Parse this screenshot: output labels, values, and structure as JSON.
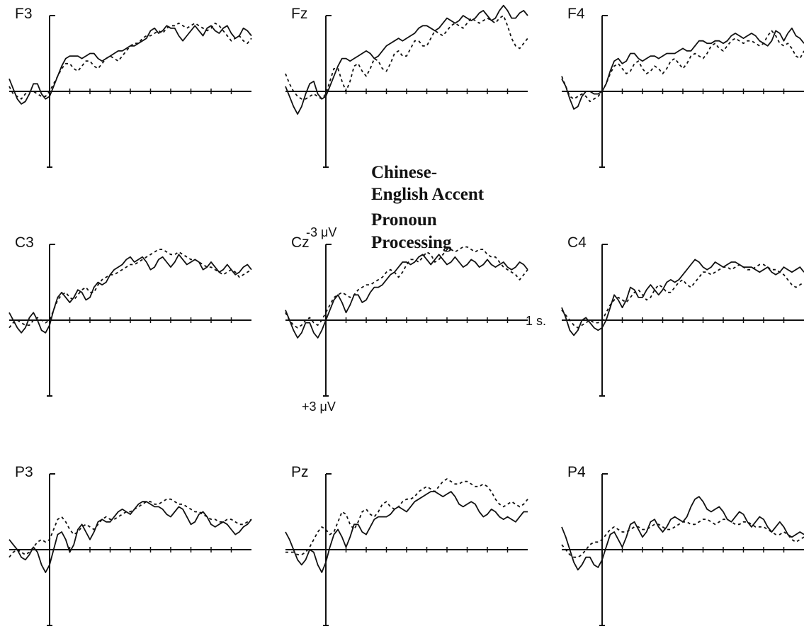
{
  "chart_data": {
    "type": "line",
    "title_lines": [
      "Chinese-",
      "English Accent",
      "Pronoun",
      "Processing"
    ],
    "scale": {
      "negative_label": "-3 μV",
      "positive_label": "+3 μV",
      "time_label": "1 s."
    },
    "style": {
      "line_color": "#111111",
      "background": "#ffffff"
    },
    "units": {
      "x": "s",
      "y": "μV"
    },
    "xlim": [
      -0.2,
      1.0
    ],
    "ylim": [
      -3,
      3
    ],
    "x_step": 0.02,
    "x_start": -0.2,
    "series_styles": [
      {
        "id": "solid",
        "dash": ""
      },
      {
        "id": "dashed",
        "dash": "4,4"
      }
    ],
    "panels": [
      {
        "label": "F3",
        "solid": [
          -0.5,
          -0.1,
          0.3,
          0.5,
          0.4,
          0.1,
          -0.3,
          -0.3,
          0.1,
          0.3,
          0.2,
          -0.2,
          -0.6,
          -1.0,
          -1.3,
          -1.4,
          -1.4,
          -1.4,
          -1.3,
          -1.4,
          -1.5,
          -1.5,
          -1.3,
          -1.2,
          -1.3,
          -1.4,
          -1.5,
          -1.6,
          -1.6,
          -1.7,
          -1.8,
          -1.8,
          -1.9,
          -2.0,
          -2.1,
          -2.4,
          -2.5,
          -2.3,
          -2.4,
          -2.6,
          -2.5,
          -2.5,
          -2.2,
          -2.0,
          -2.2,
          -2.4,
          -2.6,
          -2.4,
          -2.2,
          -2.5,
          -2.6,
          -2.4,
          -2.3,
          -2.5,
          -2.6,
          -2.3,
          -2.1,
          -2.2,
          -2.5,
          -2.4,
          -2.2
        ],
        "dashed": [
          -0.2,
          0.1,
          0.2,
          0.3,
          0.1,
          0.0,
          0.0,
          0.1,
          0.2,
          0.2,
          0.0,
          -0.3,
          -0.6,
          -0.9,
          -1.1,
          -1.1,
          -0.9,
          -0.8,
          -1.0,
          -1.2,
          -1.2,
          -1.0,
          -0.9,
          -1.1,
          -1.3,
          -1.4,
          -1.3,
          -1.2,
          -1.4,
          -1.6,
          -1.8,
          -1.9,
          -1.9,
          -2.1,
          -2.2,
          -2.2,
          -2.3,
          -2.4,
          -2.3,
          -2.5,
          -2.6,
          -2.6,
          -2.7,
          -2.6,
          -2.5,
          -2.6,
          -2.7,
          -2.6,
          -2.5,
          -2.4,
          -2.5,
          -2.7,
          -2.6,
          -2.4,
          -2.2,
          -2.0,
          -2.1,
          -2.2,
          -2.0,
          -1.9,
          -2.1
        ]
      },
      {
        "label": "Fz",
        "solid": [
          -0.2,
          0.2,
          0.6,
          0.9,
          0.6,
          0.1,
          -0.3,
          -0.4,
          0.1,
          0.3,
          0.2,
          -0.2,
          -0.6,
          -1.0,
          -1.3,
          -1.3,
          -1.2,
          -1.3,
          -1.4,
          -1.5,
          -1.6,
          -1.5,
          -1.3,
          -1.4,
          -1.6,
          -1.8,
          -1.9,
          -2.0,
          -2.1,
          -2.0,
          -2.1,
          -2.2,
          -2.3,
          -2.5,
          -2.6,
          -2.6,
          -2.5,
          -2.4,
          -2.5,
          -2.7,
          -2.9,
          -2.8,
          -2.7,
          -2.8,
          -3.0,
          -2.9,
          -2.8,
          -2.9,
          -3.1,
          -3.2,
          -3.0,
          -2.8,
          -2.9,
          -3.2,
          -3.4,
          -3.2,
          -2.9,
          -2.9,
          -3.1,
          -3.2,
          -3.0
        ],
        "dashed": [
          -0.7,
          -0.3,
          0.0,
          0.2,
          0.3,
          0.3,
          0.2,
          0.1,
          0.2,
          0.3,
          0.1,
          -0.4,
          -0.9,
          -0.9,
          -0.4,
          0.0,
          -0.4,
          -1.0,
          -1.1,
          -0.8,
          -0.6,
          -0.9,
          -1.3,
          -1.2,
          -0.9,
          -0.8,
          -1.1,
          -1.5,
          -1.6,
          -1.4,
          -1.4,
          -1.7,
          -2.0,
          -2.0,
          -1.8,
          -1.8,
          -2.1,
          -2.4,
          -2.3,
          -2.2,
          -2.4,
          -2.6,
          -2.7,
          -2.6,
          -2.5,
          -2.7,
          -2.9,
          -2.8,
          -2.7,
          -2.8,
          -2.9,
          -2.8,
          -2.7,
          -2.9,
          -3.0,
          -2.6,
          -2.1,
          -1.8,
          -1.7,
          -1.9,
          -2.1
        ]
      },
      {
        "label": "F4",
        "solid": [
          -0.5,
          -0.2,
          0.3,
          0.7,
          0.6,
          0.2,
          0.0,
          0.0,
          0.1,
          0.1,
          0.0,
          -0.3,
          -0.8,
          -1.2,
          -1.3,
          -1.1,
          -1.2,
          -1.5,
          -1.5,
          -1.3,
          -1.2,
          -1.3,
          -1.4,
          -1.4,
          -1.3,
          -1.4,
          -1.5,
          -1.5,
          -1.5,
          -1.6,
          -1.7,
          -1.6,
          -1.6,
          -1.8,
          -2.0,
          -2.0,
          -1.9,
          -1.9,
          -2.0,
          -2.0,
          -1.9,
          -2.0,
          -2.2,
          -2.3,
          -2.2,
          -2.1,
          -2.2,
          -2.3,
          -2.2,
          -2.0,
          -1.9,
          -1.8,
          -2.0,
          -2.4,
          -2.3,
          -2.0,
          -2.3,
          -2.5,
          -2.2,
          -2.1,
          -1.9
        ],
        "dashed": [
          -0.6,
          -0.2,
          0.2,
          0.3,
          0.2,
          0.1,
          0.2,
          0.4,
          0.3,
          0.2,
          0.0,
          -0.3,
          -0.7,
          -1.0,
          -1.1,
          -0.9,
          -0.7,
          -0.8,
          -1.1,
          -1.2,
          -0.9,
          -0.7,
          -0.8,
          -1.0,
          -0.9,
          -0.7,
          -0.9,
          -1.2,
          -1.3,
          -1.1,
          -0.9,
          -1.1,
          -1.4,
          -1.5,
          -1.4,
          -1.3,
          -1.5,
          -1.8,
          -1.9,
          -1.7,
          -1.6,
          -1.8,
          -2.0,
          -2.1,
          -2.0,
          -1.9,
          -2.0,
          -2.0,
          -1.9,
          -1.8,
          -1.9,
          -2.2,
          -2.4,
          -2.2,
          -1.9,
          -1.8,
          -1.9,
          -1.7,
          -1.4,
          -1.3,
          -1.6
        ]
      },
      {
        "label": "C3",
        "solid": [
          -0.3,
          0.0,
          0.3,
          0.5,
          0.3,
          -0.1,
          -0.3,
          0.0,
          0.4,
          0.5,
          0.2,
          -0.4,
          -0.9,
          -1.1,
          -0.9,
          -0.7,
          -0.9,
          -1.2,
          -1.1,
          -0.8,
          -0.9,
          -1.3,
          -1.5,
          -1.4,
          -1.5,
          -1.8,
          -2.0,
          -2.1,
          -2.2,
          -2.4,
          -2.5,
          -2.3,
          -2.4,
          -2.5,
          -2.3,
          -2.0,
          -2.1,
          -2.4,
          -2.5,
          -2.3,
          -2.1,
          -2.3,
          -2.6,
          -2.4,
          -2.2,
          -2.3,
          -2.4,
          -2.3,
          -2.0,
          -2.1,
          -2.3,
          -2.1,
          -1.9,
          -2.0,
          -2.2,
          -2.0,
          -1.8,
          -1.9,
          -2.1,
          -2.2,
          -2.0
        ],
        "dashed": [
          0.3,
          0.1,
          0.0,
          0.1,
          0.2,
          0.2,
          0.0,
          -0.1,
          0.0,
          0.1,
          0.0,
          -0.4,
          -0.8,
          -1.0,
          -1.1,
          -0.9,
          -0.8,
          -1.0,
          -1.2,
          -1.3,
          -1.1,
          -1.1,
          -1.4,
          -1.6,
          -1.7,
          -1.8,
          -1.8,
          -1.9,
          -2.0,
          -2.1,
          -2.2,
          -2.2,
          -2.3,
          -2.4,
          -2.5,
          -2.6,
          -2.7,
          -2.8,
          -2.8,
          -2.7,
          -2.6,
          -2.6,
          -2.7,
          -2.6,
          -2.5,
          -2.4,
          -2.4,
          -2.3,
          -2.2,
          -2.1,
          -2.1,
          -2.0,
          -1.9,
          -1.8,
          -1.9,
          -2.0,
          -1.9,
          -1.7,
          -1.8,
          -1.9,
          -2.0
        ]
      },
      {
        "label": "Cz",
        "solid": [
          -0.4,
          0.0,
          0.4,
          0.7,
          0.5,
          0.1,
          0.1,
          0.5,
          0.7,
          0.4,
          0.0,
          -0.4,
          -0.8,
          -1.0,
          -0.7,
          -0.3,
          -0.6,
          -1.0,
          -1.0,
          -0.7,
          -0.8,
          -1.1,
          -1.3,
          -1.3,
          -1.4,
          -1.6,
          -1.8,
          -1.9,
          -2.1,
          -2.3,
          -2.3,
          -2.2,
          -2.3,
          -2.5,
          -2.6,
          -2.4,
          -2.2,
          -2.4,
          -2.6,
          -2.4,
          -2.2,
          -2.3,
          -2.5,
          -2.3,
          -2.1,
          -2.2,
          -2.4,
          -2.3,
          -2.1,
          -2.2,
          -2.4,
          -2.2,
          -2.1,
          -2.2,
          -2.3,
          -2.1,
          -2.0,
          -2.1,
          -2.3,
          -2.2,
          -2.0
        ],
        "dashed": [
          -0.3,
          0.0,
          0.2,
          0.3,
          0.2,
          0.0,
          -0.1,
          0.1,
          0.2,
          0.0,
          -0.3,
          -0.6,
          -0.9,
          -1.0,
          -1.1,
          -1.0,
          -0.9,
          -1.0,
          -1.2,
          -1.3,
          -1.4,
          -1.4,
          -1.5,
          -1.6,
          -1.7,
          -1.9,
          -2.0,
          -1.9,
          -1.7,
          -1.9,
          -2.2,
          -2.4,
          -2.4,
          -2.3,
          -2.5,
          -2.7,
          -2.6,
          -2.3,
          -2.4,
          -2.6,
          -2.8,
          -2.8,
          -2.7,
          -2.8,
          -2.9,
          -2.9,
          -2.8,
          -2.7,
          -2.8,
          -2.8,
          -2.6,
          -2.5,
          -2.5,
          -2.3,
          -2.1,
          -2.0,
          -1.9,
          -1.8,
          -1.6,
          -1.8,
          -2.0
        ]
      },
      {
        "label": "C4",
        "solid": [
          -0.5,
          -0.1,
          0.4,
          0.6,
          0.4,
          0.0,
          -0.1,
          0.1,
          0.3,
          0.4,
          0.3,
          0.0,
          -0.5,
          -1.0,
          -0.8,
          -0.5,
          -0.8,
          -1.3,
          -1.2,
          -0.9,
          -0.9,
          -1.2,
          -1.4,
          -1.2,
          -1.0,
          -1.2,
          -1.5,
          -1.6,
          -1.5,
          -1.6,
          -1.8,
          -2.0,
          -2.2,
          -2.4,
          -2.3,
          -2.1,
          -2.0,
          -2.1,
          -2.3,
          -2.2,
          -2.1,
          -2.2,
          -2.3,
          -2.3,
          -2.2,
          -2.1,
          -2.1,
          -2.1,
          -2.0,
          -1.9,
          -2.0,
          -2.1,
          -1.9,
          -1.8,
          -1.9,
          -2.1,
          -2.0,
          -1.9,
          -2.0,
          -2.1,
          -1.9
        ],
        "dashed": [
          -0.4,
          -0.2,
          0.0,
          0.2,
          0.3,
          0.2,
          0.1,
          0.0,
          0.1,
          0.1,
          0.0,
          -0.3,
          -0.6,
          -0.8,
          -0.9,
          -0.8,
          -0.7,
          -0.9,
          -1.1,
          -1.2,
          -1.0,
          -0.8,
          -0.9,
          -1.2,
          -1.4,
          -1.3,
          -1.1,
          -1.1,
          -1.3,
          -1.5,
          -1.6,
          -1.4,
          -1.3,
          -1.5,
          -1.7,
          -1.9,
          -1.9,
          -1.8,
          -1.9,
          -2.0,
          -2.1,
          -2.1,
          -2.0,
          -2.1,
          -2.2,
          -2.1,
          -2.0,
          -2.0,
          -2.1,
          -2.2,
          -2.2,
          -2.1,
          -2.0,
          -2.0,
          -1.9,
          -1.8,
          -1.6,
          -1.4,
          -1.3,
          -1.4,
          -1.5
        ]
      },
      {
        "label": "P3",
        "solid": [
          -0.4,
          -0.2,
          0.0,
          0.3,
          0.4,
          0.2,
          -0.1,
          0.1,
          0.6,
          0.9,
          0.6,
          0.0,
          -0.6,
          -0.7,
          -0.4,
          0.1,
          -0.2,
          -0.8,
          -1.0,
          -0.7,
          -0.4,
          -0.7,
          -1.1,
          -1.2,
          -1.1,
          -1.1,
          -1.3,
          -1.5,
          -1.6,
          -1.5,
          -1.4,
          -1.6,
          -1.8,
          -1.9,
          -1.9,
          -1.8,
          -1.7,
          -1.7,
          -1.6,
          -1.4,
          -1.3,
          -1.5,
          -1.7,
          -1.6,
          -1.3,
          -1.0,
          -1.1,
          -1.4,
          -1.5,
          -1.3,
          -1.0,
          -0.9,
          -1.0,
          -1.1,
          -1.0,
          -0.8,
          -0.6,
          -0.7,
          -0.9,
          -1.0,
          -1.2
        ],
        "dashed": [
          0.3,
          0.1,
          0.0,
          0.1,
          0.2,
          0.1,
          -0.1,
          -0.3,
          -0.4,
          -0.3,
          -0.4,
          -0.8,
          -1.2,
          -1.3,
          -1.1,
          -0.8,
          -0.6,
          -0.7,
          -0.9,
          -1.0,
          -0.9,
          -0.8,
          -1.0,
          -1.2,
          -1.3,
          -1.2,
          -1.2,
          -1.3,
          -1.4,
          -1.5,
          -1.5,
          -1.6,
          -1.7,
          -1.8,
          -1.9,
          -1.9,
          -1.8,
          -1.8,
          -1.9,
          -2.0,
          -2.0,
          -1.9,
          -1.8,
          -1.8,
          -1.7,
          -1.6,
          -1.5,
          -1.5,
          -1.4,
          -1.3,
          -1.2,
          -1.2,
          -1.1,
          -1.1,
          -1.2,
          -1.2,
          -1.1,
          -1.0,
          -1.0,
          -1.1,
          -1.2
        ]
      },
      {
        "label": "Pz",
        "solid": [
          -0.7,
          -0.4,
          0.0,
          0.4,
          0.6,
          0.4,
          0.0,
          0.1,
          0.6,
          0.9,
          0.5,
          -0.1,
          -0.6,
          -0.8,
          -0.5,
          -0.1,
          -0.5,
          -1.0,
          -1.0,
          -0.7,
          -0.6,
          -0.9,
          -1.2,
          -1.3,
          -1.3,
          -1.3,
          -1.4,
          -1.6,
          -1.7,
          -1.6,
          -1.5,
          -1.7,
          -1.9,
          -2.0,
          -2.1,
          -2.2,
          -2.3,
          -2.3,
          -2.2,
          -2.1,
          -2.2,
          -2.3,
          -2.1,
          -1.8,
          -1.7,
          -1.8,
          -1.9,
          -1.8,
          -1.5,
          -1.3,
          -1.4,
          -1.6,
          -1.5,
          -1.3,
          -1.2,
          -1.3,
          -1.2,
          -1.1,
          -1.3,
          -1.5,
          -1.5
        ],
        "dashed": [
          0.1,
          0.1,
          0.1,
          0.2,
          0.2,
          0.1,
          -0.1,
          -0.4,
          -0.7,
          -0.9,
          -0.8,
          -0.6,
          -0.7,
          -1.1,
          -1.5,
          -1.4,
          -1.0,
          -0.8,
          -1.1,
          -1.5,
          -1.6,
          -1.4,
          -1.3,
          -1.5,
          -1.8,
          -1.9,
          -1.7,
          -1.6,
          -1.7,
          -1.9,
          -2.0,
          -2.0,
          -2.1,
          -2.3,
          -2.4,
          -2.5,
          -2.4,
          -2.3,
          -2.5,
          -2.7,
          -2.8,
          -2.7,
          -2.6,
          -2.6,
          -2.7,
          -2.7,
          -2.6,
          -2.5,
          -2.5,
          -2.6,
          -2.5,
          -2.3,
          -2.0,
          -1.8,
          -1.7,
          -1.8,
          -1.9,
          -1.8,
          -1.7,
          -1.8,
          -2.0
        ]
      },
      {
        "label": "P4",
        "solid": [
          -0.9,
          -0.5,
          0.0,
          0.5,
          0.8,
          0.6,
          0.3,
          0.3,
          0.6,
          0.7,
          0.4,
          -0.1,
          -0.6,
          -0.7,
          -0.4,
          -0.1,
          -0.5,
          -1.0,
          -1.1,
          -0.8,
          -0.5,
          -0.7,
          -1.1,
          -1.2,
          -0.9,
          -0.7,
          -0.9,
          -1.2,
          -1.3,
          -1.2,
          -1.1,
          -1.3,
          -1.7,
          -2.0,
          -2.1,
          -1.9,
          -1.6,
          -1.5,
          -1.6,
          -1.7,
          -1.5,
          -1.2,
          -1.1,
          -1.3,
          -1.5,
          -1.4,
          -1.1,
          -0.9,
          -1.1,
          -1.3,
          -1.2,
          -0.9,
          -0.7,
          -0.9,
          -1.1,
          -0.9,
          -0.6,
          -0.5,
          -0.6,
          -0.7,
          -0.6
        ],
        "dashed": [
          -0.2,
          0.0,
          0.2,
          0.3,
          0.3,
          0.2,
          0.0,
          -0.2,
          -0.3,
          -0.3,
          -0.4,
          -0.6,
          -0.8,
          -0.9,
          -0.8,
          -0.7,
          -0.7,
          -0.8,
          -0.9,
          -0.9,
          -0.8,
          -0.8,
          -0.9,
          -1.0,
          -1.0,
          -0.9,
          -0.8,
          -0.8,
          -0.9,
          -1.0,
          -1.1,
          -1.1,
          -1.0,
          -1.0,
          -1.1,
          -1.2,
          -1.2,
          -1.1,
          -1.0,
          -1.1,
          -1.2,
          -1.2,
          -1.1,
          -1.0,
          -1.0,
          -1.1,
          -1.1,
          -1.0,
          -0.9,
          -0.9,
          -0.9,
          -0.8,
          -0.7,
          -0.6,
          -0.6,
          -0.7,
          -0.6,
          -0.4,
          -0.3,
          -0.4,
          -0.5
        ]
      }
    ]
  }
}
